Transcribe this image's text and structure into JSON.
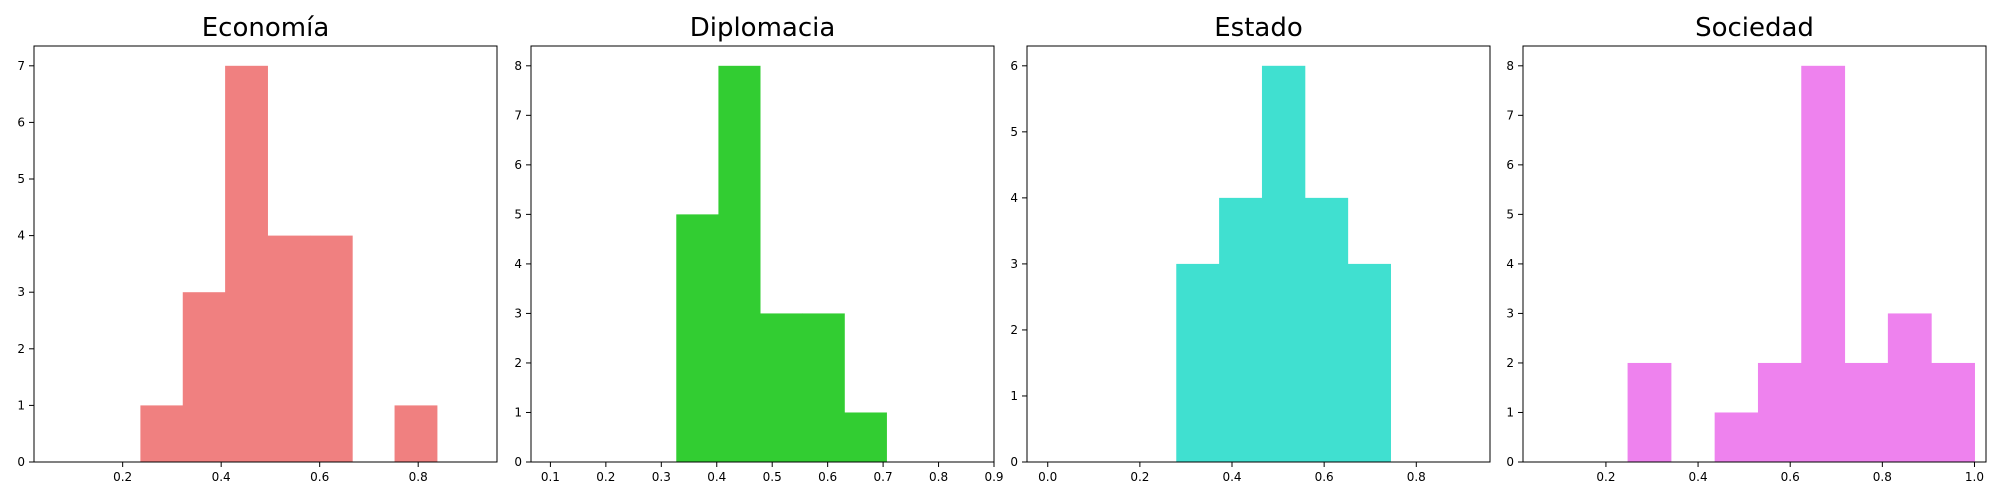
{
  "chart_data": [
    {
      "type": "bar",
      "title": "Economía",
      "color": "#F08080",
      "xlim": [
        0.02,
        0.96
      ],
      "ylim": [
        0,
        7.35
      ],
      "xticks": [
        {
          "v": 0.2,
          "label": "0.2"
        },
        {
          "v": 0.4,
          "label": "0.4"
        },
        {
          "v": 0.6,
          "label": "0.6"
        },
        {
          "v": 0.8,
          "label": "0.8"
        }
      ],
      "yticks": [
        0,
        1,
        2,
        3,
        4,
        5,
        6,
        7
      ],
      "bins": [
        {
          "x0": 0.236,
          "x1": 0.322,
          "value": 1
        },
        {
          "x0": 0.322,
          "x1": 0.408,
          "value": 3
        },
        {
          "x0": 0.408,
          "x1": 0.494,
          "value": 7
        },
        {
          "x0": 0.494,
          "x1": 0.58,
          "value": 4
        },
        {
          "x0": 0.58,
          "x1": 0.666,
          "value": 4
        },
        {
          "x0": 0.666,
          "x1": 0.752,
          "value": 0
        },
        {
          "x0": 0.752,
          "x1": 0.838,
          "value": 1
        }
      ]
    },
    {
      "type": "bar",
      "title": "Diplomacia",
      "color": "#32CD32",
      "xlim": [
        0.065,
        0.9
      ],
      "ylim": [
        0,
        8.4
      ],
      "xticks": [
        {
          "v": 0.1,
          "label": "0.1"
        },
        {
          "v": 0.2,
          "label": "0.2"
        },
        {
          "v": 0.3,
          "label": "0.3"
        },
        {
          "v": 0.4,
          "label": "0.4"
        },
        {
          "v": 0.5,
          "label": "0.5"
        },
        {
          "v": 0.6,
          "label": "0.6"
        },
        {
          "v": 0.7,
          "label": "0.7"
        },
        {
          "v": 0.8,
          "label": "0.8"
        },
        {
          "v": 0.9,
          "label": "0.9"
        }
      ],
      "yticks": [
        0,
        1,
        2,
        3,
        4,
        5,
        6,
        7,
        8
      ],
      "bins": [
        {
          "x0": 0.327,
          "x1": 0.403,
          "value": 5
        },
        {
          "x0": 0.403,
          "x1": 0.478,
          "value": 8
        },
        {
          "x0": 0.478,
          "x1": 0.554,
          "value": 3
        },
        {
          "x0": 0.554,
          "x1": 0.63,
          "value": 3
        },
        {
          "x0": 0.63,
          "x1": 0.706,
          "value": 1
        }
      ]
    },
    {
      "type": "bar",
      "title": "Estado",
      "color": "#40E0D0",
      "xlim": [
        -0.045,
        0.96
      ],
      "ylim": [
        0,
        6.3
      ],
      "xticks": [
        {
          "v": 0.0,
          "label": "0.0"
        },
        {
          "v": 0.2,
          "label": "0.2"
        },
        {
          "v": 0.4,
          "label": "0.4"
        },
        {
          "v": 0.6,
          "label": "0.6"
        },
        {
          "v": 0.8,
          "label": "0.8"
        }
      ],
      "yticks": [
        0,
        1,
        2,
        3,
        4,
        5,
        6
      ],
      "bins": [
        {
          "x0": 0.279,
          "x1": 0.372,
          "value": 3
        },
        {
          "x0": 0.372,
          "x1": 0.465,
          "value": 4
        },
        {
          "x0": 0.465,
          "x1": 0.558,
          "value": 6
        },
        {
          "x0": 0.558,
          "x1": 0.651,
          "value": 4
        },
        {
          "x0": 0.651,
          "x1": 0.744,
          "value": 3
        }
      ]
    },
    {
      "type": "bar",
      "title": "Sociedad",
      "color": "#EE82EE",
      "xlim": [
        0.02,
        1.025
      ],
      "ylim": [
        0,
        8.4
      ],
      "xticks": [
        {
          "v": 0.2,
          "label": "0.2"
        },
        {
          "v": 0.4,
          "label": "0.4"
        },
        {
          "v": 0.6,
          "label": "0.6"
        },
        {
          "v": 0.8,
          "label": "0.8"
        },
        {
          "v": 1.0,
          "label": "1.0"
        }
      ],
      "yticks": [
        0,
        1,
        2,
        3,
        4,
        5,
        6,
        7,
        8
      ],
      "bins": [
        {
          "x0": 0.247,
          "x1": 0.341,
          "value": 2
        },
        {
          "x0": 0.341,
          "x1": 0.436,
          "value": 0
        },
        {
          "x0": 0.436,
          "x1": 0.53,
          "value": 1
        },
        {
          "x0": 0.53,
          "x1": 0.624,
          "value": 2
        },
        {
          "x0": 0.624,
          "x1": 0.718,
          "value": 8
        },
        {
          "x0": 0.718,
          "x1": 0.812,
          "value": 2
        },
        {
          "x0": 0.812,
          "x1": 0.906,
          "value": 3
        },
        {
          "x0": 0.906,
          "x1": 1.0,
          "value": 2
        }
      ]
    }
  ]
}
